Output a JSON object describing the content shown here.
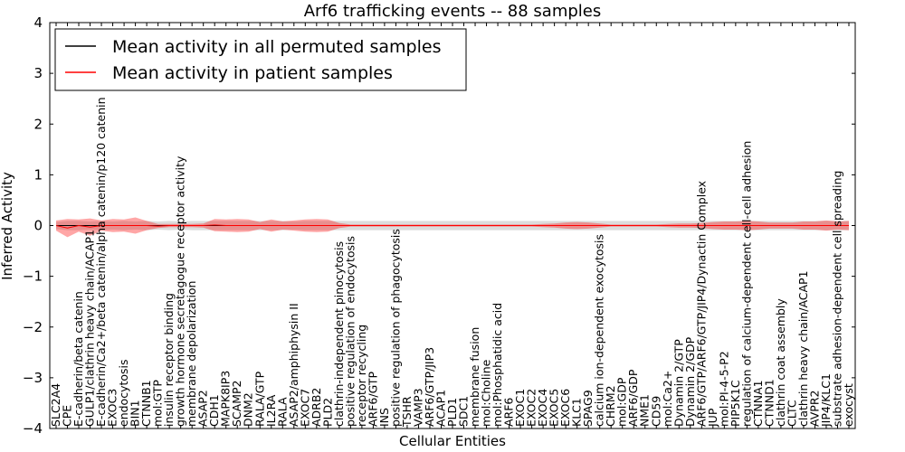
{
  "chart_data": {
    "type": "line",
    "title": "Arf6 trafficking events -- 88 samples",
    "xlabel": "Cellular Entities",
    "ylabel": "Inferred Activity",
    "ylim": [
      -4,
      4
    ],
    "yticks": [
      "−4",
      "−3",
      "−2",
      "−1",
      "0",
      "1",
      "2",
      "3",
      "4"
    ],
    "legend": {
      "placement": "top-left",
      "entries": [
        {
          "label": "Mean activity in all permuted samples",
          "color": "#000000"
        },
        {
          "label": "Mean activity in patient samples",
          "color": "#ff0000"
        }
      ]
    },
    "categories": [
      "SLC2A4",
      "CPE",
      "E-cadherin/beta catenin",
      "GULP1/clathrin heavy chain/ACAP1",
      "E-cadherin/Ca2+/beta catenin/alpha catenin/p120 catenin",
      "EXOC3",
      "endocytosis",
      "BIN1",
      "CTNNB1",
      "mol:GTP",
      "insulin receptor binding",
      "growth hormone secretagogue receptor activity",
      "membrane depolarization",
      "ASAP2",
      "CDH1",
      "MAPK8IP3",
      "SCAMP2",
      "DNM2",
      "RALA/GTP",
      "IL2RA",
      "RALA",
      "ASAP2/amphiphysin II",
      "EXOC7",
      "ADRB2",
      "PLD2",
      "clathrin-independent pinocytosis",
      "positive regulation of endocytosis",
      "receptor recycling",
      "ARF6/GTP",
      "INS",
      "positive regulation of phagocytosis",
      "TSHR",
      "VAMP3",
      "ARF6/GTP/JIP3",
      "ACAP1",
      "PLD1",
      "SDC1",
      "membrane fusion",
      "mol:Choline",
      "mol:Phosphatidic acid",
      "ARF6",
      "EXOC1",
      "EXOC2",
      "EXOC4",
      "EXOC5",
      "EXOC6",
      "KLC1",
      "SPAG9",
      "calcium ion-dependent exocytosis",
      "CHRM2",
      "mol:GDP",
      "ARF6/GDP",
      "NME1",
      "CD59",
      "mol:Ca2+",
      "Dynamin 2/GTP",
      "Dynamin 2/GDP",
      "ARF6/GTP/ARF6/GTP/JIP4/Dynactin Complex",
      "JUP",
      "mol:PI-4-5-P2",
      "PIP5K1C",
      "regulation of calcium-dependent cell-cell adhesion",
      "CTNNA1",
      "CTNND1",
      "clathrin coat assembly",
      "CLTC",
      "clathrin heavy chain/ACAP1",
      "AVPR2",
      "JIP4/KLC1",
      "substrate adhesion-dependent cell spreading",
      "exocyst"
    ],
    "series": [
      {
        "name": "Mean activity in all permuted samples",
        "color": "#000000",
        "values": [
          0.0,
          0.0,
          0.0,
          0.0,
          0.0,
          0.0,
          0.0,
          0.0,
          0.0,
          0.0,
          0.0,
          0.0,
          0.0,
          0.0,
          0.0,
          0.0,
          0.0,
          0.0,
          0.0,
          0.0,
          0.0,
          0.0,
          0.0,
          0.0,
          0.0,
          0.0,
          0.0,
          0.0,
          0.0,
          0.0,
          0.0,
          0.0,
          0.0,
          0.0,
          0.0,
          0.0,
          0.0,
          0.0,
          0.0,
          0.0,
          0.0,
          0.0,
          0.0,
          0.0,
          0.0,
          0.0,
          0.0,
          0.0,
          0.0,
          0.0,
          0.0,
          0.0,
          0.0,
          0.0,
          0.0,
          0.0,
          0.0,
          0.0,
          0.0,
          0.0,
          0.0,
          0.0,
          0.0,
          0.0,
          0.0,
          0.0,
          0.0,
          0.0,
          0.0,
          0.0,
          0.0
        ]
      },
      {
        "name": "Mean activity in patient samples",
        "color": "#ff0000",
        "values": [
          0.0,
          -0.05,
          0.0,
          -0.03,
          0.0,
          0.0,
          0.0,
          0.0,
          0.0,
          -0.01,
          0.0,
          0.0,
          0.0,
          0.0,
          0.01,
          0.0,
          0.0,
          0.0,
          0.0,
          0.0,
          0.0,
          0.0,
          0.0,
          0.0,
          0.0,
          0.0,
          0.0,
          0.0,
          0.0,
          0.0,
          0.0,
          0.0,
          0.0,
          0.0,
          0.0,
          0.0,
          0.0,
          0.0,
          0.0,
          0.0,
          0.0,
          0.0,
          0.0,
          0.0,
          0.0,
          0.0,
          0.0,
          0.0,
          0.0,
          0.0,
          0.0,
          0.0,
          0.0,
          0.0,
          0.0,
          0.0,
          0.0,
          0.0,
          0.0,
          0.0,
          0.0,
          0.0,
          0.0,
          0.0,
          0.0,
          0.0,
          0.0,
          0.0,
          0.0,
          0.0,
          0.0
        ]
      }
    ],
    "bands": {
      "patient_halfwidth": [
        0.1,
        0.18,
        0.12,
        0.17,
        0.1,
        0.13,
        0.12,
        0.16,
        0.09,
        0.04,
        0.03,
        0.03,
        0.03,
        0.04,
        0.12,
        0.12,
        0.13,
        0.12,
        0.07,
        0.12,
        0.08,
        0.1,
        0.12,
        0.13,
        0.12,
        0.05,
        0.02,
        0.02,
        0.02,
        0.02,
        0.02,
        0.02,
        0.02,
        0.02,
        0.02,
        0.02,
        0.02,
        0.02,
        0.02,
        0.02,
        0.02,
        0.02,
        0.02,
        0.03,
        0.04,
        0.06,
        0.07,
        0.06,
        0.04,
        0.02,
        0.02,
        0.02,
        0.02,
        0.02,
        0.03,
        0.04,
        0.04,
        0.05,
        0.07,
        0.08,
        0.08,
        0.09,
        0.08,
        0.06,
        0.06,
        0.06,
        0.08,
        0.08,
        0.1,
        0.08,
        0.09
      ],
      "permuted_halfwidth": [
        0.07,
        0.09,
        0.09,
        0.08,
        0.09,
        0.08,
        0.09,
        0.08,
        0.09,
        0.08,
        0.09,
        0.08,
        0.09,
        0.09,
        0.09,
        0.09,
        0.09,
        0.09,
        0.09,
        0.09,
        0.09,
        0.08,
        0.09,
        0.09,
        0.09,
        0.09,
        0.09,
        0.09,
        0.09,
        0.09,
        0.09,
        0.09,
        0.09,
        0.09,
        0.09,
        0.09,
        0.09,
        0.09,
        0.09,
        0.09,
        0.09,
        0.09,
        0.09,
        0.09,
        0.09,
        0.09,
        0.09,
        0.09,
        0.09,
        0.09,
        0.09,
        0.09,
        0.09,
        0.09,
        0.09,
        0.09,
        0.09,
        0.09,
        0.09,
        0.09,
        0.09,
        0.09,
        0.09,
        0.09,
        0.09,
        0.09,
        0.09,
        0.09,
        0.09,
        0.09,
        0.09
      ]
    }
  }
}
